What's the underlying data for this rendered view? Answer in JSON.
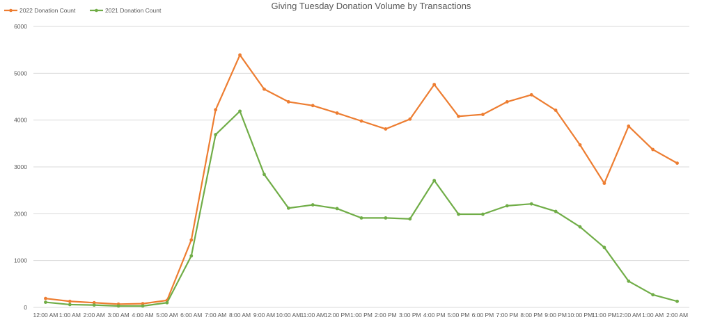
{
  "chart_data": {
    "type": "line",
    "title": "Giving Tuesday Donation Volume by Transactions",
    "xlabel": "",
    "ylabel": "",
    "categories": [
      "12:00 AM",
      "1:00 AM",
      "2:00 AM",
      "3:00 AM",
      "4:00 AM",
      "5:00 AM",
      "6:00 AM",
      "7:00 AM",
      "8:00 AM",
      "9:00 AM",
      "10:00 AM",
      "11:00 AM",
      "12:00 PM",
      "1:00 PM",
      "2:00 PM",
      "3:00 PM",
      "4:00 PM",
      "5:00 PM",
      "6:00 PM",
      "7:00 PM",
      "8:00 PM",
      "9:00 PM",
      "10:00 PM",
      "11:00 PM",
      "12:00 AM",
      "1:00 AM",
      "2:00 AM"
    ],
    "ylim": [
      0,
      6000
    ],
    "yticks": [
      0,
      1000,
      2000,
      3000,
      4000,
      5000,
      6000
    ],
    "grid": true,
    "legend_position": "top-left",
    "series": [
      {
        "name": "2022 Donation Count",
        "color": "#ed7d31",
        "values": [
          190,
          130,
          100,
          70,
          80,
          150,
          1440,
          4220,
          5390,
          4660,
          4390,
          4310,
          4150,
          3980,
          3810,
          4020,
          4760,
          4080,
          4120,
          4390,
          4540,
          4210,
          3470,
          2650,
          3870,
          3370,
          3080
        ]
      },
      {
        "name": "2021 Donation Count",
        "color": "#70ad47",
        "values": [
          110,
          60,
          50,
          30,
          30,
          100,
          1100,
          3690,
          4190,
          2840,
          2120,
          2190,
          2110,
          1910,
          1910,
          1890,
          2710,
          1990,
          1990,
          2170,
          2210,
          2050,
          1720,
          1280,
          560,
          270,
          130
        ]
      }
    ]
  }
}
